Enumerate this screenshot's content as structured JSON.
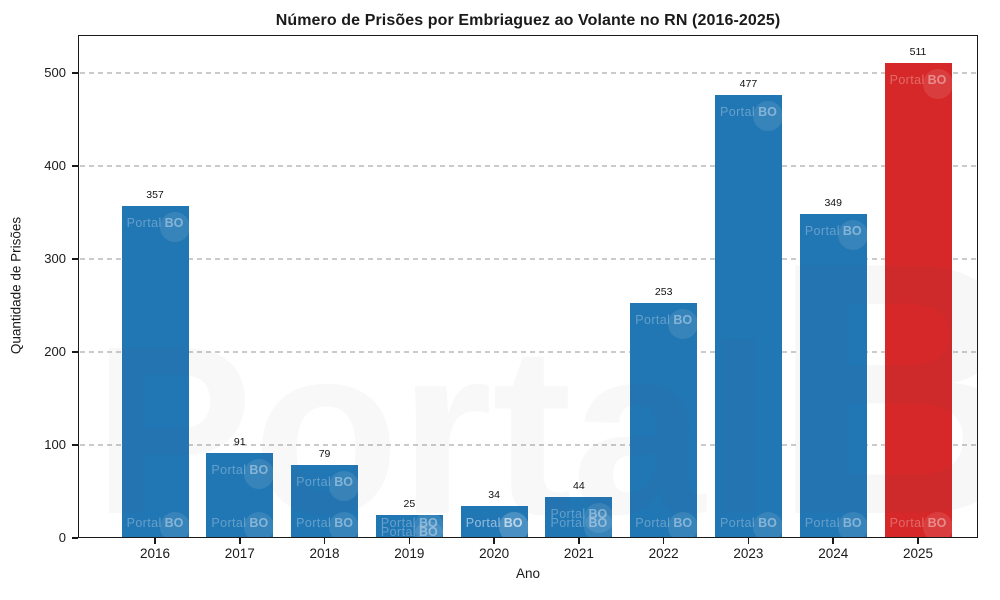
{
  "chart": {
    "title": "Número de Prisões por Embriaguez ao Volante no RN (2016-2025)",
    "xlabel": "Ano",
    "ylabel": "Quantidade de Prisões"
  },
  "watermark": {
    "brand_regular": "Portal",
    "brand_bold": "BO"
  },
  "chart_data": {
    "type": "bar",
    "title": "Número de Prisões por Embriaguez ao Volante no RN (2016-2025)",
    "xlabel": "Ano",
    "ylabel": "Quantidade de Prisões",
    "categories": [
      "2016",
      "2017",
      "2018",
      "2019",
      "2020",
      "2021",
      "2022",
      "2023",
      "2024",
      "2025"
    ],
    "values": [
      357,
      91,
      79,
      25,
      34,
      44,
      253,
      477,
      349,
      511
    ],
    "bar_colors": [
      "#2176b4",
      "#2176b4",
      "#2176b4",
      "#2176b4",
      "#2176b4",
      "#2176b4",
      "#2176b4",
      "#2176b4",
      "#2176b4",
      "#d62828"
    ],
    "default_bar_color": "#2176b4",
    "highlight_category": "2025",
    "highlight_color": "#d62828",
    "value_labels": [
      357,
      91,
      79,
      25,
      34,
      44,
      253,
      477,
      349,
      511
    ],
    "yticks": [
      0,
      100,
      200,
      300,
      400,
      500
    ],
    "ylim": [
      0,
      541
    ],
    "grid": {
      "axis": "y",
      "style": "dashed",
      "color": "#cbcbcb"
    },
    "legend": null
  }
}
